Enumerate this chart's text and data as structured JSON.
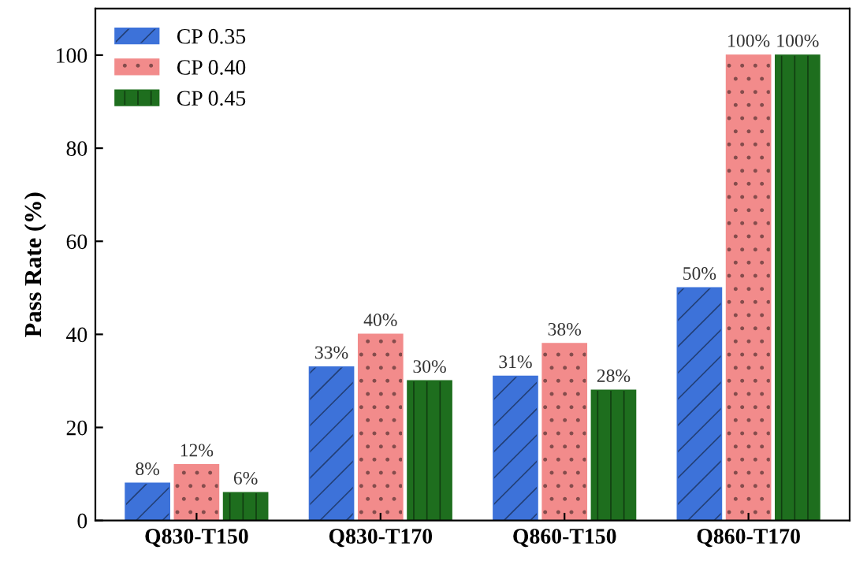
{
  "chart_data": {
    "type": "bar",
    "ylabel": "Pass Rate (%)",
    "categories": [
      "Q830-T150",
      "Q830-T170",
      "Q860-T150",
      "Q860-T170"
    ],
    "series": [
      {
        "name": "CP 0.35",
        "color": "#3d72d9",
        "values": [
          8,
          33,
          31,
          50
        ],
        "value_labels": [
          "8%",
          "33%",
          "31%",
          "50%"
        ]
      },
      {
        "name": "CP 0.40",
        "color": "#f28b8b",
        "values": [
          12,
          40,
          38,
          100
        ],
        "value_labels": [
          "12%",
          "40%",
          "38%",
          "100%"
        ]
      },
      {
        "name": "CP 0.45",
        "color": "#1e6e1e",
        "values": [
          6,
          30,
          28,
          100
        ],
        "value_labels": [
          "6%",
          "30%",
          "28%",
          "100%"
        ]
      }
    ],
    "ylim": [
      0,
      110
    ],
    "yticks": [
      0,
      20,
      40,
      60,
      80,
      100
    ],
    "grid": false,
    "legend": "top left"
  }
}
